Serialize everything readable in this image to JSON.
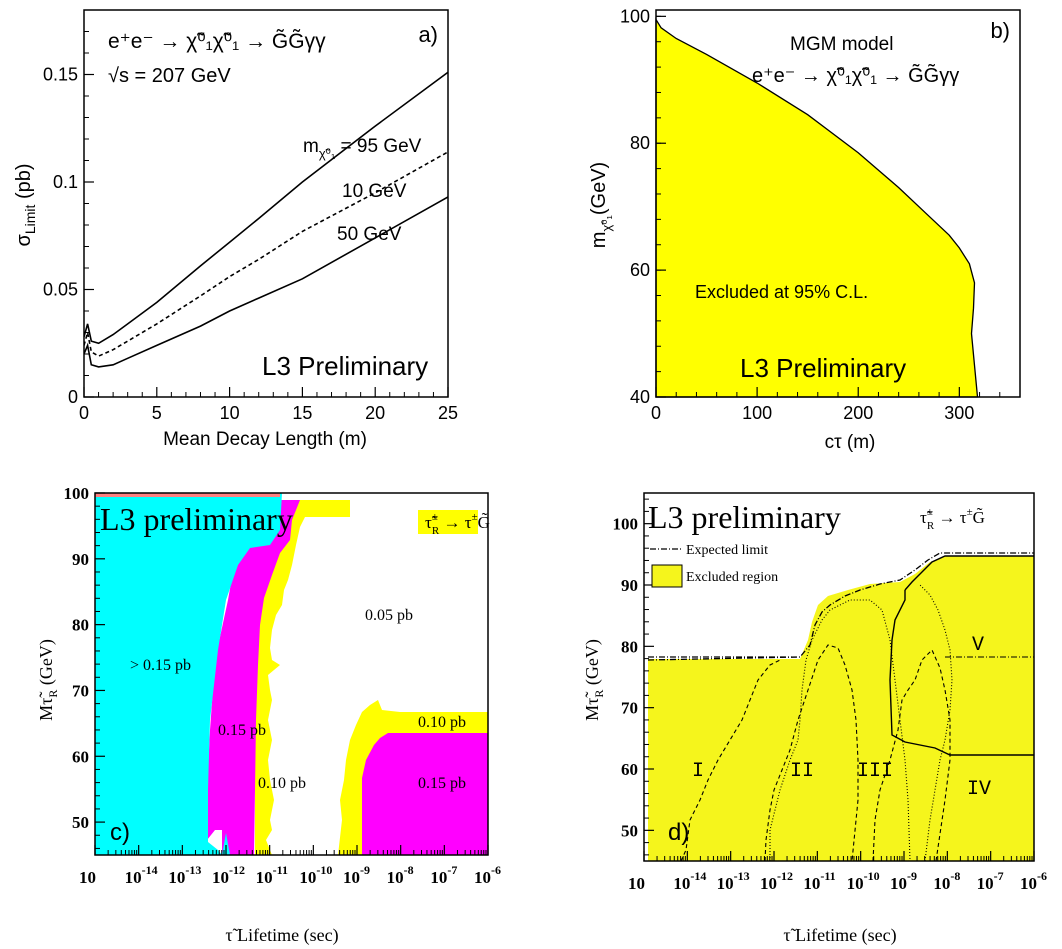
{
  "colors": {
    "yellow": "#ffff00",
    "yellow_d": "#f5f51c",
    "cyan": "#00ffff",
    "magenta": "#ff00ff",
    "axis": "#000000"
  },
  "chart_data": [
    {
      "panel": "a",
      "type": "line",
      "panel_label": "a)",
      "process_label": "e⁺e⁻ → χ̃⁰₁χ̃⁰₁ → G̃G̃γγ",
      "energy_label": "√s = 207 GeV",
      "watermark": "L3 Preliminary",
      "xlabel": "Mean Decay Length (m)",
      "ylabel": "σLimit (pb)",
      "xlim": [
        0,
        25
      ],
      "ylim": [
        0,
        0.18
      ],
      "xticks": [
        "0",
        "5",
        "10",
        "15",
        "20",
        "25"
      ],
      "yticks": [
        "0",
        "0.05",
        "0.1",
        "0.15"
      ],
      "series": [
        {
          "name": "m = 95 GeV",
          "label_prefix": "m",
          "label_sub": "χ̃⁰₁",
          "label_rest": " = 95 GeV",
          "style": "solid",
          "x": [
            0,
            0.25,
            0.5,
            1,
            2,
            3,
            5,
            8,
            10,
            12,
            15,
            20,
            25
          ],
          "y": [
            0.028,
            0.034,
            0.026,
            0.025,
            0.029,
            0.034,
            0.044,
            0.061,
            0.072,
            0.083,
            0.1,
            0.126,
            0.151
          ]
        },
        {
          "name": "10 GeV",
          "style": "dashed",
          "x": [
            0,
            0.25,
            0.5,
            1,
            2,
            3,
            5,
            8,
            10,
            12,
            15,
            20,
            25
          ],
          "y": [
            0.024,
            0.03,
            0.021,
            0.019,
            0.022,
            0.026,
            0.034,
            0.047,
            0.056,
            0.064,
            0.077,
            0.095,
            0.114
          ]
        },
        {
          "name": "50 GeV",
          "style": "solid",
          "x": [
            0,
            0.25,
            0.5,
            1,
            2,
            3,
            5,
            8,
            10,
            12,
            15,
            20,
            25
          ],
          "y": [
            0.02,
            0.024,
            0.015,
            0.014,
            0.015,
            0.018,
            0.024,
            0.033,
            0.04,
            0.046,
            0.055,
            0.074,
            0.093
          ]
        }
      ]
    },
    {
      "panel": "b",
      "type": "area",
      "panel_label": "b)",
      "model_label": "MGM model",
      "process_label": "e⁺e⁻ → χ̃⁰₁χ̃⁰₁ → G̃G̃γγ",
      "region_label": "Excluded  at 95% C.L.",
      "watermark": "L3 Preliminary",
      "xlabel": "cτ (m)",
      "ylabel": "m χ̃⁰₁ (GeV)",
      "xlim": [
        0,
        360
      ],
      "ylim": [
        40,
        101
      ],
      "xticks": [
        "0",
        "100",
        "200",
        "300"
      ],
      "yticks": [
        "40",
        "60",
        "80",
        "100"
      ],
      "boundary": {
        "x": [
          0,
          5,
          20,
          50,
          100,
          150,
          200,
          240,
          270,
          290,
          300,
          310,
          315,
          314,
          312,
          315,
          318
        ],
        "y": [
          99.5,
          98.2,
          96.5,
          94,
          89.5,
          84.5,
          78.5,
          73,
          68.5,
          65.5,
          63.5,
          61,
          58,
          54,
          50,
          45,
          40
        ]
      }
    },
    {
      "panel": "c",
      "type": "heatmap",
      "watermark": "L3 preliminary",
      "channel_label": "τ̃±R → τ±G̃",
      "xlabel": "τ̃ Lifetime (sec)",
      "ylabel": "Mτ̃R (GeV)",
      "xlim_log10": [
        -15,
        -6
      ],
      "ylim": [
        45,
        100
      ],
      "xticks": [
        "10-14",
        "10-13",
        "10-12",
        "10-11",
        "10-10",
        "10-9",
        "10-8",
        "10-7",
        "10-6"
      ],
      "yticks": [
        "50",
        "60",
        "70",
        "80",
        "90",
        "100"
      ],
      "region_labels": [
        "> 0.15 pb",
        "0.15 pb",
        "0.05 pb",
        "0.10 pb",
        "0.10 pb",
        "0.15 pb"
      ]
    },
    {
      "panel": "d",
      "type": "area",
      "panel_label": "d)",
      "watermark": "L3 preliminary",
      "channel_label": "τ̃±R → τ±G̃",
      "legend": [
        "Expected limit",
        "Excluded region"
      ],
      "xlabel": "τ̃ Lifetime (sec)",
      "ylabel": "Mτ̃R (GeV)",
      "xlim_log10": [
        -15,
        -6
      ],
      "ylim": [
        45,
        105
      ],
      "xticks": [
        "10-14",
        "10-13",
        "10-12",
        "10-11",
        "10-10",
        "10-9",
        "10-8",
        "10-7",
        "10-6"
      ],
      "yticks": [
        "50",
        "60",
        "70",
        "80",
        "90",
        "100"
      ],
      "region_labels": [
        "I",
        "II",
        "III",
        "IV",
        "V"
      ]
    }
  ]
}
